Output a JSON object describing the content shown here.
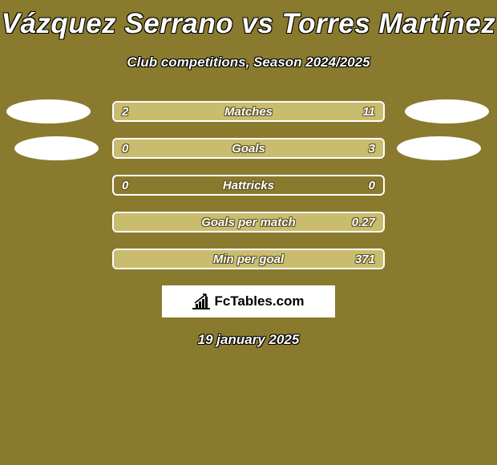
{
  "title": "Vázquez Serrano vs Torres Martínez",
  "subtitle": "Club competitions, Season 2024/2025",
  "brand": "FcTables.com",
  "date": "19 january 2025",
  "colors": {
    "background": "#8a7a2e",
    "bar_fill": "#c9bc6f",
    "bar_border": "#ffffff",
    "text": "#ffffff",
    "text_shadow": "#5a5020"
  },
  "stats": [
    {
      "label": "Matches",
      "left_value": "2",
      "right_value": "11",
      "left_pct": 15,
      "right_pct": 85,
      "show_ellipses": true,
      "ellipse_class": ""
    },
    {
      "label": "Goals",
      "left_value": "0",
      "right_value": "3",
      "left_pct": 0,
      "right_pct": 100,
      "show_ellipses": true,
      "ellipse_class": "row2"
    },
    {
      "label": "Hattricks",
      "left_value": "0",
      "right_value": "0",
      "left_pct": 0,
      "right_pct": 0,
      "show_ellipses": false,
      "ellipse_class": ""
    },
    {
      "label": "Goals per match",
      "left_value": "",
      "right_value": "0.27",
      "left_pct": 0,
      "right_pct": 100,
      "show_ellipses": false,
      "ellipse_class": ""
    },
    {
      "label": "Min per goal",
      "left_value": "",
      "right_value": "371",
      "left_pct": 0,
      "right_pct": 100,
      "show_ellipses": false,
      "ellipse_class": ""
    }
  ]
}
